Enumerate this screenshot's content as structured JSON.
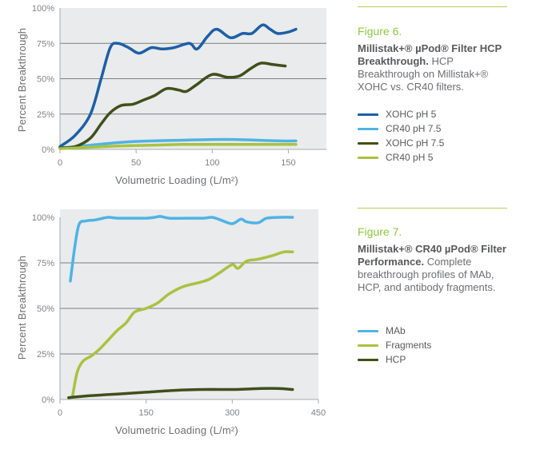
{
  "colors": {
    "xohc5": "#1d5fa6",
    "cr4075": "#4fb3e3",
    "xohc75": "#3f4f1a",
    "cr405": "#a9c23f",
    "mab": "#4fb3e3",
    "fragments": "#a9c23f",
    "hcp": "#3f4f1a",
    "grid": "#7b7d80",
    "plot_bg": "#e9ebec",
    "accent": "#8dc63f"
  },
  "figure6": {
    "label": "Figure 6.",
    "title": "Millistak+® µPod® Filter HCP Breakthrough.",
    "caption": "HCP Breakthrough on Millistak+® XOHC vs. CR40 filters."
  },
  "figure7": {
    "label": "Figure 7.",
    "title": "Millistak+® CR40 µPod® Filter Performance.",
    "caption": "Complete breakthrough profiles of MAb, HCP, and antibody fragments."
  },
  "chart_data": [
    {
      "type": "line",
      "xlabel": "Volumetric Loading (L/m²)",
      "ylabel": "Percent Breakthrough",
      "xlim": [
        0,
        175
      ],
      "ylim": [
        0,
        100
      ],
      "x_ticks": [
        0,
        50,
        100,
        150
      ],
      "y_ticks": [
        0,
        25,
        50,
        75,
        100
      ],
      "y_tick_labels": [
        "0%",
        "25%",
        "50%",
        "75%",
        "100%"
      ],
      "grid": true,
      "legend_position": "right",
      "series": [
        {
          "name": "XOHC pH 5",
          "color_key": "xohc5",
          "points": [
            [
              0,
              2
            ],
            [
              10,
              10
            ],
            [
              20,
              25
            ],
            [
              27,
              50
            ],
            [
              33,
              72
            ],
            [
              38,
              75
            ],
            [
              45,
              72
            ],
            [
              52,
              68
            ],
            [
              60,
              72
            ],
            [
              67,
              71
            ],
            [
              75,
              72
            ],
            [
              85,
              75
            ],
            [
              90,
              71
            ],
            [
              97,
              80
            ],
            [
              103,
              85
            ],
            [
              112,
              79
            ],
            [
              120,
              82
            ],
            [
              126,
              82
            ],
            [
              133,
              88
            ],
            [
              138,
              85
            ],
            [
              143,
              82
            ],
            [
              150,
              83
            ],
            [
              155,
              85
            ]
          ]
        },
        {
          "name": "CR40 pH 7.5",
          "color_key": "cr4075",
          "points": [
            [
              0,
              1
            ],
            [
              20,
              3
            ],
            [
              40,
              5
            ],
            [
              60,
              6
            ],
            [
              80,
              6.5
            ],
            [
              100,
              7
            ],
            [
              115,
              7
            ],
            [
              130,
              6.5
            ],
            [
              145,
              6
            ],
            [
              155,
              6
            ]
          ]
        },
        {
          "name": "XOHC pH 7.5",
          "color_key": "xohc75",
          "points": [
            [
              0,
              1
            ],
            [
              10,
              2
            ],
            [
              20,
              8
            ],
            [
              27,
              18
            ],
            [
              33,
              26
            ],
            [
              40,
              31
            ],
            [
              48,
              32
            ],
            [
              55,
              35
            ],
            [
              62,
              38
            ],
            [
              70,
              43
            ],
            [
              78,
              42
            ],
            [
              83,
              41
            ],
            [
              90,
              46
            ],
            [
              100,
              53
            ],
            [
              110,
              51
            ],
            [
              118,
              52
            ],
            [
              125,
              57
            ],
            [
              132,
              61
            ],
            [
              140,
              60
            ],
            [
              148,
              59
            ]
          ]
        },
        {
          "name": "CR40 pH 5",
          "color_key": "cr405",
          "points": [
            [
              0,
              0.5
            ],
            [
              20,
              1.5
            ],
            [
              40,
              2.5
            ],
            [
              60,
              3
            ],
            [
              80,
              3.5
            ],
            [
              100,
              3.5
            ],
            [
              120,
              3.5
            ],
            [
              140,
              3.5
            ],
            [
              155,
              3.5
            ]
          ]
        }
      ]
    },
    {
      "type": "line",
      "xlabel": "Volumetric Loading (L/m²)",
      "ylabel": "Percent Breakthrough",
      "xlim": [
        0,
        450
      ],
      "ylim": [
        0,
        100
      ],
      "x_ticks": [
        0,
        150,
        300,
        450
      ],
      "y_ticks": [
        0,
        25,
        50,
        75,
        100
      ],
      "y_tick_labels": [
        "0%",
        "25%",
        "50%",
        "75%",
        "100%"
      ],
      "grid": true,
      "legend_position": "right",
      "series": [
        {
          "name": "MAb",
          "color_key": "mab",
          "points": [
            [
              18,
              65
            ],
            [
              25,
              82
            ],
            [
              33,
              96
            ],
            [
              45,
              98
            ],
            [
              60,
              98.5
            ],
            [
              75,
              99.5
            ],
            [
              85,
              100
            ],
            [
              100,
              99.5
            ],
            [
              120,
              99.5
            ],
            [
              150,
              99.5
            ],
            [
              165,
              100
            ],
            [
              175,
              100.5
            ],
            [
              190,
              99.5
            ],
            [
              220,
              99.5
            ],
            [
              250,
              99.5
            ],
            [
              265,
              100
            ],
            [
              280,
              98.5
            ],
            [
              300,
              96.5
            ],
            [
              315,
              99
            ],
            [
              325,
              97.5
            ],
            [
              345,
              97
            ],
            [
              360,
              99.5
            ],
            [
              385,
              100
            ],
            [
              405,
              100
            ]
          ]
        },
        {
          "name": "Fragments",
          "color_key": "fragments",
          "points": [
            [
              22,
              2
            ],
            [
              30,
              15
            ],
            [
              40,
              21
            ],
            [
              55,
              24
            ],
            [
              70,
              28
            ],
            [
              85,
              33
            ],
            [
              100,
              38
            ],
            [
              115,
              42
            ],
            [
              130,
              48
            ],
            [
              150,
              50
            ],
            [
              170,
              53
            ],
            [
              190,
              58
            ],
            [
              215,
              62
            ],
            [
              240,
              64
            ],
            [
              260,
              66
            ],
            [
              280,
              70
            ],
            [
              300,
              74
            ],
            [
              310,
              72
            ],
            [
              325,
              76
            ],
            [
              345,
              77
            ],
            [
              370,
              79
            ],
            [
              390,
              81
            ],
            [
              405,
              81
            ]
          ]
        },
        {
          "name": "HCP",
          "color_key": "hcp",
          "points": [
            [
              15,
              1
            ],
            [
              50,
              2
            ],
            [
              100,
              3
            ],
            [
              150,
              4
            ],
            [
              200,
              5
            ],
            [
              250,
              5.5
            ],
            [
              300,
              5.5
            ],
            [
              350,
              6
            ],
            [
              380,
              6
            ],
            [
              405,
              5.5
            ]
          ]
        }
      ]
    }
  ]
}
